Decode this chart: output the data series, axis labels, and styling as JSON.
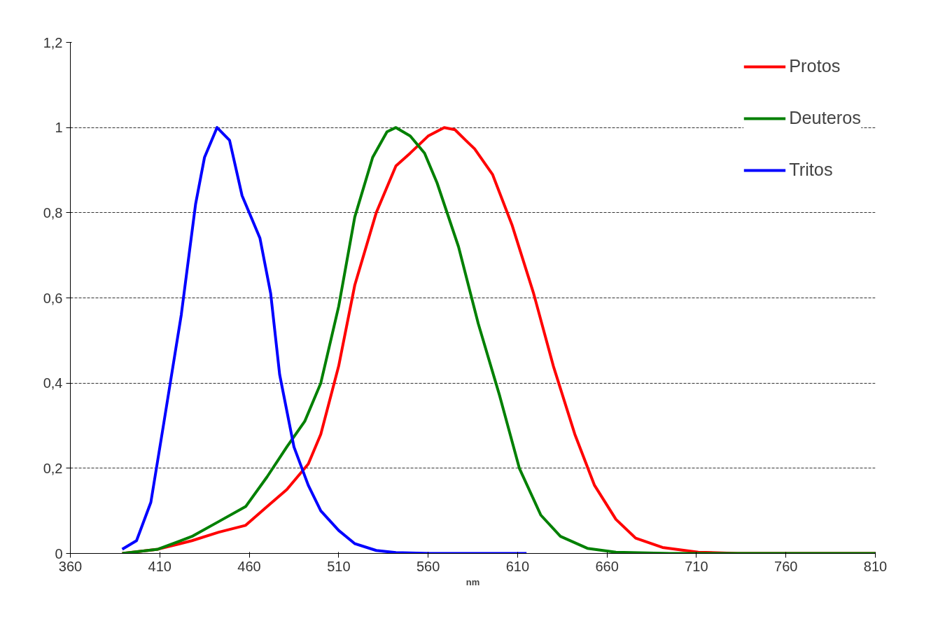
{
  "chart_data": {
    "type": "line",
    "xlabel": "nm",
    "xlim": [
      360,
      810
    ],
    "xticks": [
      360,
      410,
      460,
      510,
      560,
      610,
      660,
      710,
      760,
      810
    ],
    "ylim": [
      0,
      1.2
    ],
    "yticks": [
      0,
      {
        "value": 0.2,
        "label": "0,2"
      },
      {
        "value": 0.4,
        "label": "0,4"
      },
      {
        "value": 0.6,
        "label": "0,6"
      },
      {
        "value": 0.8,
        "label": "0,8"
      },
      1,
      {
        "value": 1.2,
        "label": "1,2"
      }
    ],
    "grid": "y",
    "legend": "top right",
    "line_style": "solid",
    "marker": "none",
    "series": [
      {
        "name": "Protos",
        "color": "#ff0000",
        "x": [
          389,
          409,
          428,
          443,
          458,
          470,
          481,
          493,
          500,
          510,
          519,
          531,
          542,
          550,
          560,
          569,
          575,
          581,
          586,
          596,
          607,
          619,
          630,
          642,
          653,
          665,
          676,
          691,
          711,
          733,
          810
        ],
        "values": [
          0,
          0.01,
          0.03,
          0.05,
          0.066,
          0.11,
          0.15,
          0.21,
          0.28,
          0.44,
          0.63,
          0.8,
          0.91,
          0.94,
          0.98,
          1.0,
          0.995,
          0.97,
          0.95,
          0.89,
          0.77,
          0.61,
          0.44,
          0.28,
          0.16,
          0.08,
          0.036,
          0.014,
          0.003,
          0,
          0
        ]
      },
      {
        "name": "Deuteros",
        "color": "#008000",
        "x": [
          389,
          409,
          428,
          443,
          458,
          470,
          481,
          491,
          500,
          510,
          519,
          529,
          537,
          542,
          550,
          558,
          565,
          577,
          588,
          600,
          611,
          623,
          634,
          649,
          665,
          695,
          810
        ],
        "values": [
          0,
          0.01,
          0.04,
          0.075,
          0.11,
          0.18,
          0.25,
          0.31,
          0.4,
          0.58,
          0.79,
          0.93,
          0.99,
          1.0,
          0.98,
          0.94,
          0.87,
          0.72,
          0.54,
          0.37,
          0.2,
          0.09,
          0.04,
          0.012,
          0.003,
          0,
          0
        ]
      },
      {
        "name": "Tritos",
        "color": "#0000ff",
        "x": [
          389,
          397,
          405,
          412,
          422,
          430,
          435,
          442,
          449,
          456,
          460,
          466,
          472,
          477,
          485,
          493,
          500,
          510,
          519,
          531,
          542,
          561,
          615
        ],
        "values": [
          0.01,
          0.03,
          0.12,
          0.3,
          0.56,
          0.82,
          0.93,
          1.0,
          0.97,
          0.84,
          0.8,
          0.74,
          0.61,
          0.42,
          0.25,
          0.16,
          0.1,
          0.054,
          0.023,
          0.007,
          0.002,
          0,
          0
        ]
      }
    ]
  }
}
